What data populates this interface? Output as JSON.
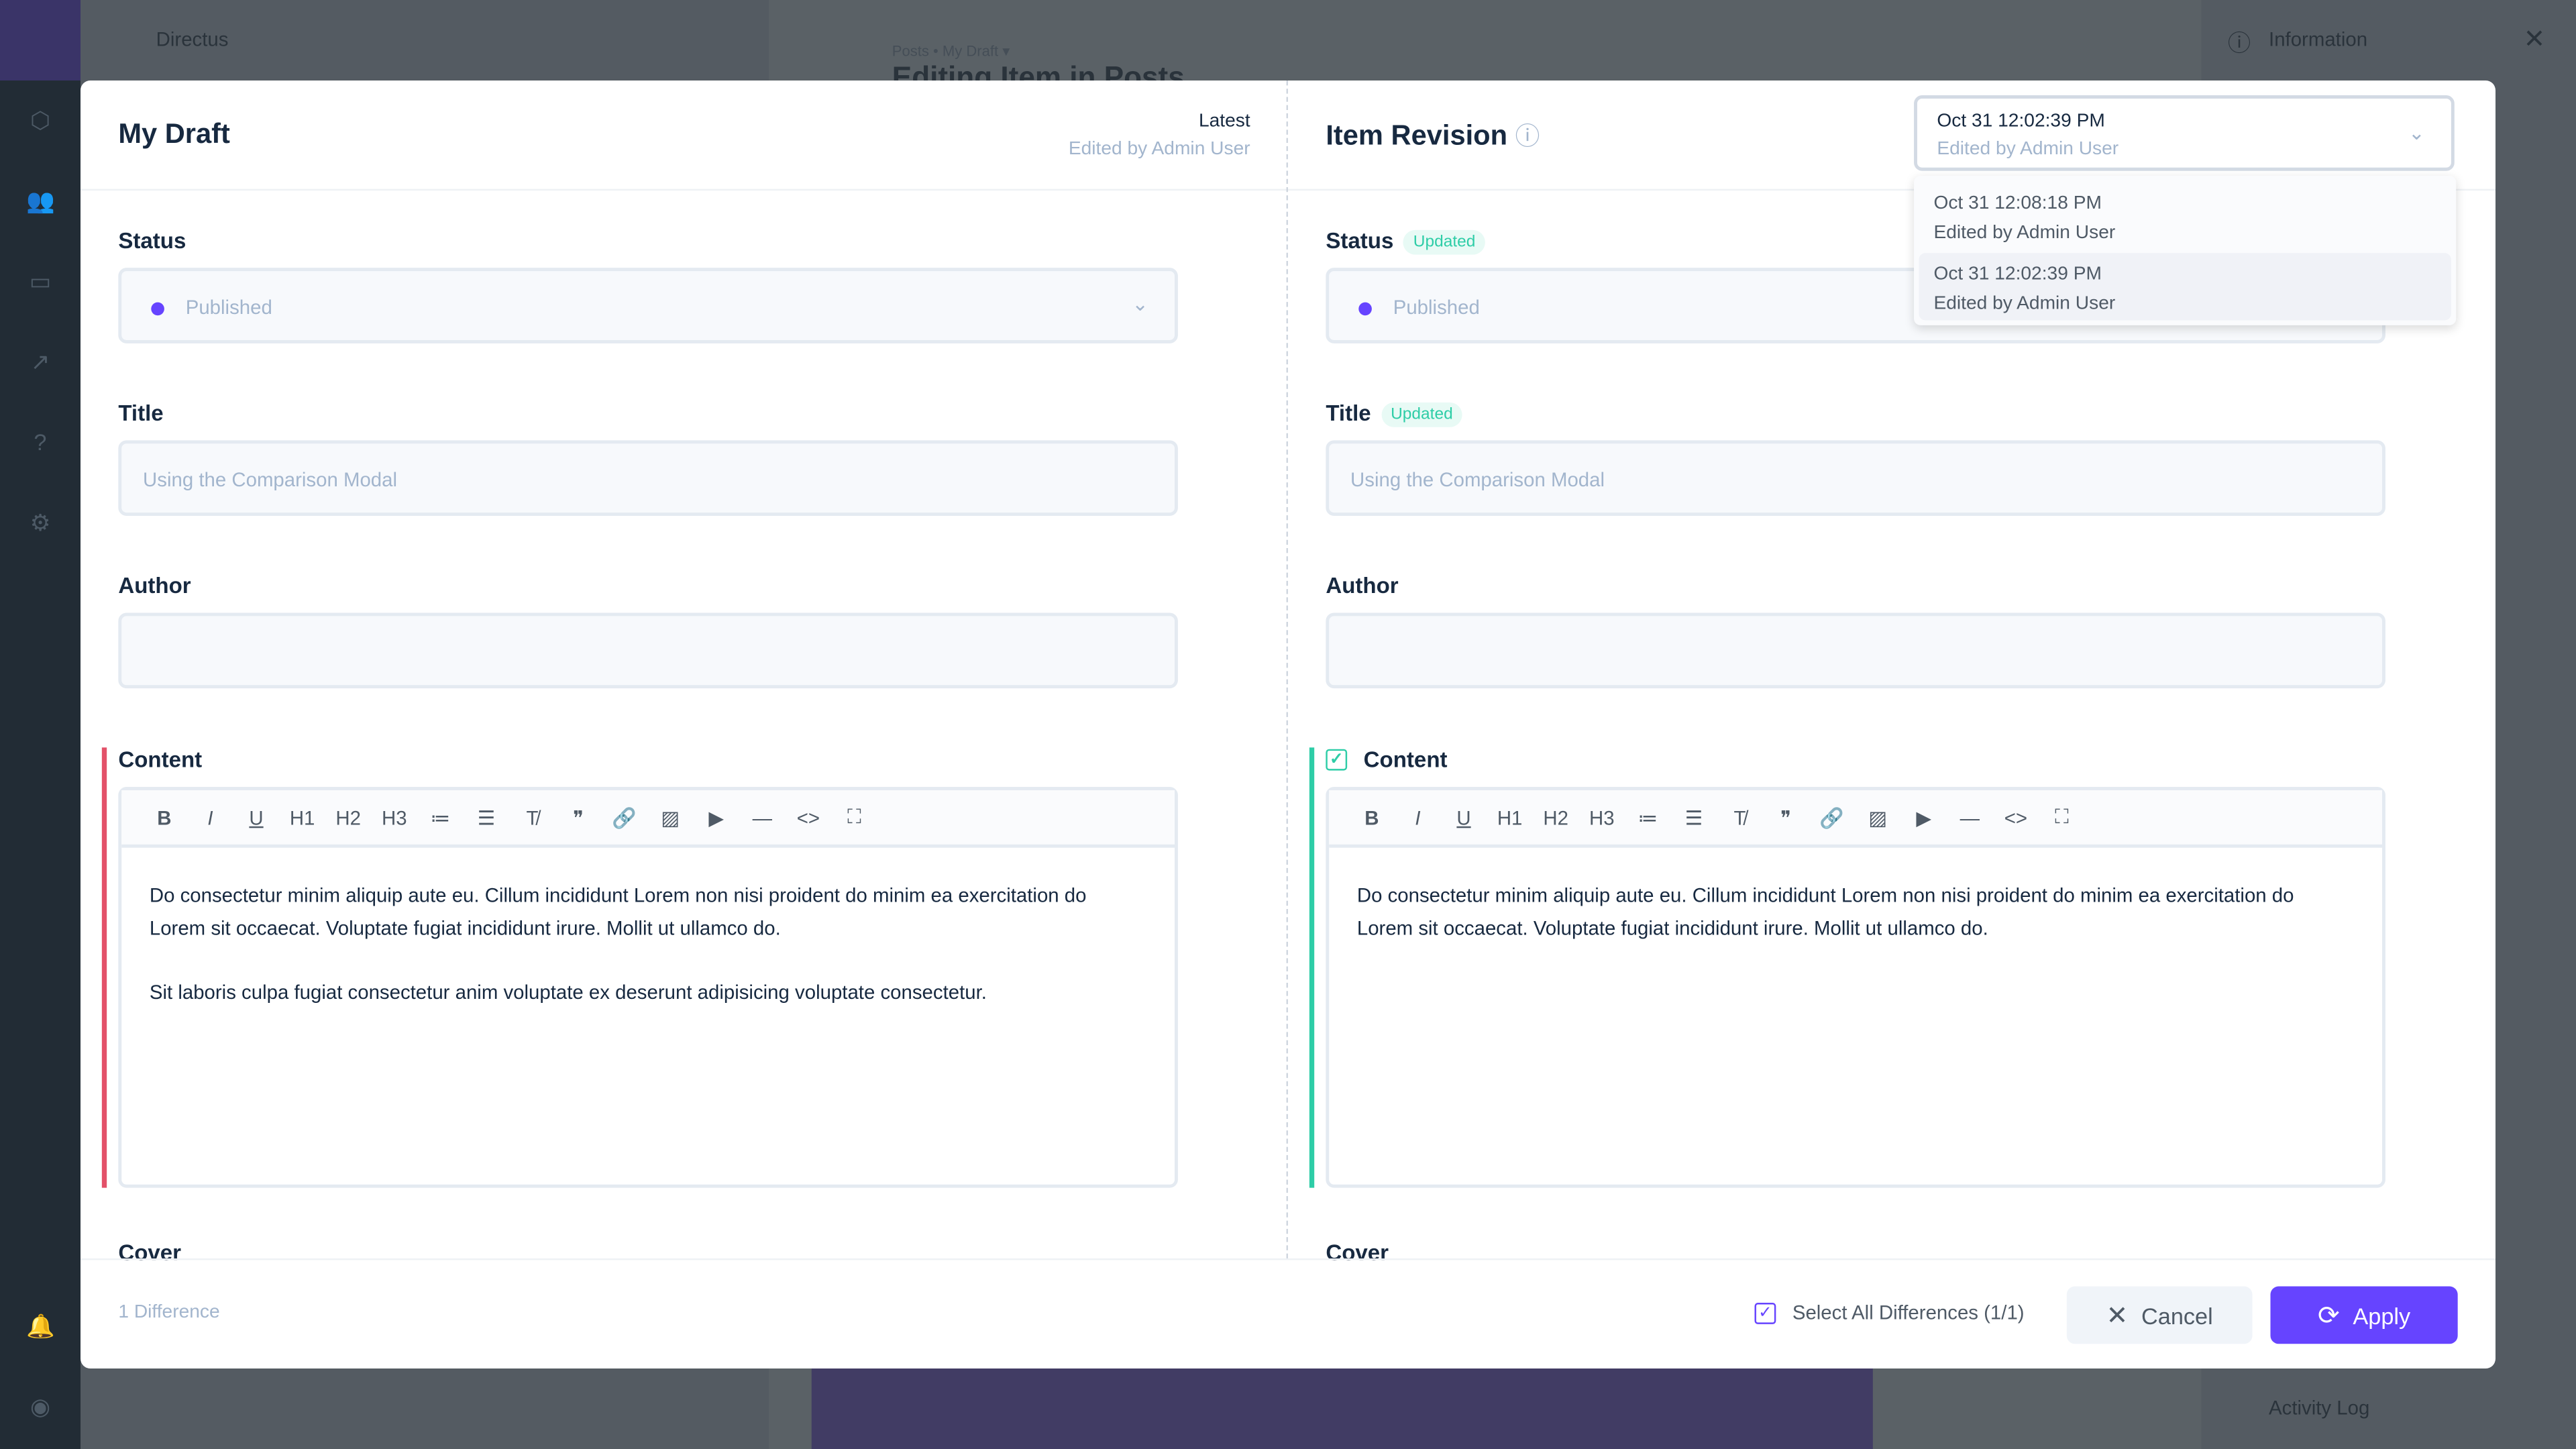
{
  "background": {
    "app_name": "Directus",
    "breadcrumb": "Posts • My Draft ▾",
    "page_title": "Editing Item in Posts",
    "info_title": "Information",
    "activity_log": "Activity Log"
  },
  "left": {
    "title": "My Draft",
    "version_label": "Latest",
    "version_editor": "Edited by Admin User"
  },
  "right": {
    "title": "Item Revision",
    "selected": {
      "time": "Oct 31 12:02:39 PM",
      "editor": "Edited by Admin User"
    },
    "options": [
      {
        "time": "Oct 31 12:08:18 PM",
        "editor": "Edited by Admin User"
      },
      {
        "time": "Oct 31 12:02:39 PM",
        "editor": "Edited by Admin User",
        "highlighted": true
      }
    ]
  },
  "fields": {
    "status_label": "Status",
    "status_value": "Published",
    "title_label": "Title",
    "title_value": "Using the Comparison Modal",
    "author_label": "Author",
    "content_label": "Content",
    "cover_label": "Cover",
    "updated_badge": "Updated"
  },
  "toolbar": [
    "B",
    "I",
    "U",
    "H1",
    "H2",
    "H3",
    "≔",
    "☰",
    "T̸",
    "❞",
    "🔗",
    "▨",
    "▶",
    "—",
    "<>",
    "⛶"
  ],
  "content_left": [
    "Do consectetur minim aliquip aute eu. Cillum incididunt Lorem non nisi proident do minim ea exercitation do Lorem sit occaecat. Voluptate fugiat incididunt irure. Mollit ut ullamco do.",
    "Sit laboris culpa fugiat consectetur anim voluptate ex deserunt adipisicing voluptate consectetur."
  ],
  "content_right": [
    "Do consectetur minim aliquip aute eu. Cillum incididunt Lorem non nisi proident do minim ea exercitation do Lorem sit occaecat. Voluptate fugiat incididunt irure. Mollit ut ullamco do."
  ],
  "footer": {
    "differences": "1 Difference",
    "select_all": "Select All Differences (1/1)",
    "cancel": "Cancel",
    "apply": "Apply"
  },
  "colors": {
    "accent": "#6644ff",
    "removed": "#e35169",
    "added": "#2ecda7"
  }
}
